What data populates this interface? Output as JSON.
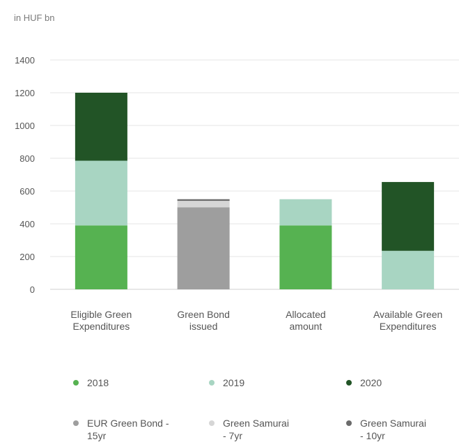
{
  "chart_data": {
    "type": "bar",
    "stacked": true,
    "unit_label": "in HUF bn",
    "categories": [
      "Eligible Green\nExpenditures",
      "Green Bond\nissued",
      "Allocated\namount",
      "Available Green\nExpenditures"
    ],
    "ylim": [
      0,
      1400
    ],
    "yticks": [
      0,
      200,
      400,
      600,
      800,
      1000,
      1200,
      1400
    ],
    "grid": true,
    "legend_position": "bottom",
    "series": [
      {
        "name": "2018",
        "color": "#56b251",
        "values": [
          390,
          0,
          390,
          0
        ]
      },
      {
        "name": "2019",
        "color": "#a8d5c2",
        "values": [
          395,
          0,
          160,
          235
        ]
      },
      {
        "name": "2020",
        "color": "#225426",
        "values": [
          415,
          0,
          0,
          420
        ]
      },
      {
        "name": "EUR Green Bond -\n15yr",
        "color": "#9e9e9e",
        "values": [
          0,
          500,
          0,
          0
        ]
      },
      {
        "name": "Green Samurai\n- 7yr",
        "color": "#d6d6d6",
        "values": [
          0,
          40,
          0,
          0
        ]
      },
      {
        "name": "Green Samurai\n- 10yr",
        "color": "#6b6b6b",
        "values": [
          0,
          10,
          0,
          0
        ]
      }
    ]
  }
}
